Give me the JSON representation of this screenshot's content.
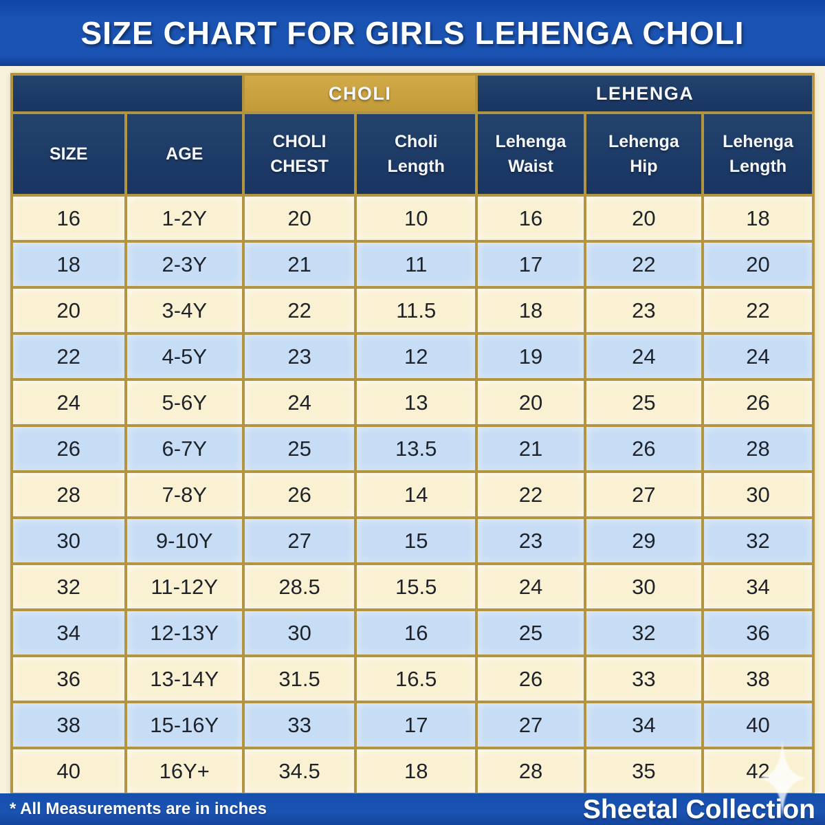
{
  "title": "SIZE CHART FOR GIRLS LEHENGA CHOLI",
  "footer": {
    "note": "* All Measurements are in inches",
    "brand": "Sheetal Collection"
  },
  "icons": {
    "sparkle_icon": "four-pointed-star"
  },
  "colors": {
    "title_bar_blue": "#1b53b2",
    "header_navy": "#1c3a63",
    "choli_gold": "#c8a23c",
    "border_gold": "#b29441",
    "row_cream": "#faf1d3",
    "row_blue": "#c7ddf5",
    "page_cream": "#f8f2dd",
    "text_dark": "#1e222a",
    "text_light": "#ffffff"
  },
  "chart_data": {
    "type": "table",
    "title": "SIZE CHART FOR GIRLS LEHENGA CHOLI",
    "group_headers": [
      {
        "label": "",
        "colspan": 2,
        "style": "navy"
      },
      {
        "label": "CHOLI",
        "colspan": 2,
        "style": "gold"
      },
      {
        "label": "LEHENGA",
        "colspan": 3,
        "style": "navy"
      }
    ],
    "columns": [
      "SIZE",
      "AGE",
      "CHOLI CHEST",
      "Choli Length",
      "Lehenga Waist",
      "Lehenga Hip",
      "Lehenga Length"
    ],
    "column_widths_pct": [
      14.2,
      14.7,
      14.0,
      15.1,
      13.5,
      14.7,
      13.8
    ],
    "rows": [
      [
        "16",
        "1-2Y",
        "20",
        "10",
        "16",
        "20",
        "18"
      ],
      [
        "18",
        "2-3Y",
        "21",
        "11",
        "17",
        "22",
        "20"
      ],
      [
        "20",
        "3-4Y",
        "22",
        "11.5",
        "18",
        "23",
        "22"
      ],
      [
        "22",
        "4-5Y",
        "23",
        "12",
        "19",
        "24",
        "24"
      ],
      [
        "24",
        "5-6Y",
        "24",
        "13",
        "20",
        "25",
        "26"
      ],
      [
        "26",
        "6-7Y",
        "25",
        "13.5",
        "21",
        "26",
        "28"
      ],
      [
        "28",
        "7-8Y",
        "26",
        "14",
        "22",
        "27",
        "30"
      ],
      [
        "30",
        "9-10Y",
        "27",
        "15",
        "23",
        "29",
        "32"
      ],
      [
        "32",
        "11-12Y",
        "28.5",
        "15.5",
        "24",
        "30",
        "34"
      ],
      [
        "34",
        "12-13Y",
        "30",
        "16",
        "25",
        "32",
        "36"
      ],
      [
        "36",
        "13-14Y",
        "31.5",
        "16.5",
        "26",
        "33",
        "38"
      ],
      [
        "38",
        "15-16Y",
        "33",
        "17",
        "27",
        "34",
        "40"
      ],
      [
        "40",
        "16Y+",
        "34.5",
        "18",
        "28",
        "35",
        "42"
      ]
    ],
    "row_stripe_pattern": [
      "cream",
      "blue"
    ],
    "units_note": "* All Measurements are in inches"
  }
}
